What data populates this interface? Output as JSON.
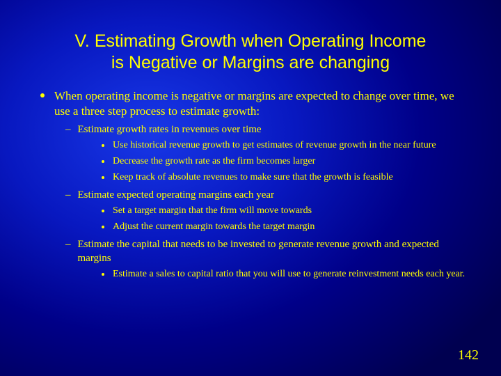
{
  "title_line1": "V. Estimating Growth when Operating Income",
  "title_line2": "is Negative or Margins are changing",
  "main": {
    "text": "When operating income is negative or margins are expected to change over time, we use a three step process to estimate growth:",
    "steps": [
      {
        "label": "Estimate growth rates in revenues over time",
        "points": [
          "Use historical revenue growth to get estimates of revenue growth in the near future",
          "Decrease the growth rate as the firm becomes larger",
          "Keep track of absolute revenues to make sure that the growth is feasible"
        ]
      },
      {
        "label": "Estimate expected operating margins each year",
        "points": [
          "Set a target margin that the firm will move towards",
          "Adjust the current margin towards the target margin"
        ]
      },
      {
        "label": "Estimate the capital that needs to be invested to generate revenue growth and expected margins",
        "points": [
          "Estimate a sales to capital ratio that you will use to generate reinvestment needs each year."
        ]
      }
    ]
  },
  "page_number": "142",
  "colors": {
    "text": "#ffff00",
    "bg_center": "#1838e8",
    "bg_edge": "#000050"
  }
}
